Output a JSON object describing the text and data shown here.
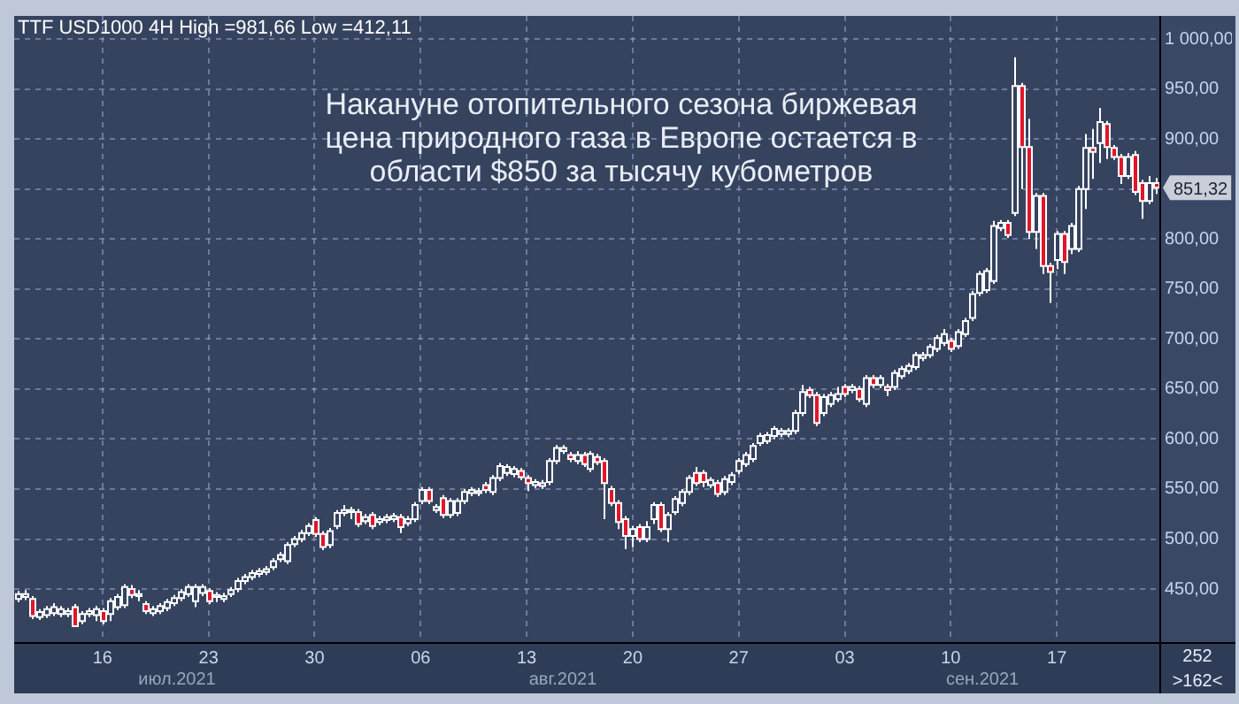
{
  "chart_data": {
    "type": "candlestick",
    "title": "Накануне отопительного сезона биржевая цена природного газа в Европе остается в области $850 за тысячу кубометров",
    "subtitle": "TTF USD1000 4H High =981,66 Low =412,11",
    "categories": [
      null,
      null,
      null,
      null,
      null,
      null,
      null,
      null,
      null,
      null,
      null,
      null,
      "16",
      null,
      null,
      null,
      null,
      null,
      null,
      null,
      null,
      null,
      null,
      null,
      null,
      null,
      null,
      "23",
      null,
      null,
      null,
      null,
      null,
      null,
      null,
      null,
      null,
      null,
      null,
      null,
      null,
      null,
      "30",
      null,
      null,
      null,
      null,
      null,
      null,
      null,
      null,
      null,
      null,
      null,
      null,
      null,
      null,
      "06",
      null,
      null,
      null,
      null,
      null,
      null,
      null,
      null,
      null,
      null,
      null,
      null,
      null,
      null,
      "13",
      null,
      null,
      null,
      null,
      null,
      null,
      null,
      null,
      null,
      null,
      null,
      null,
      null,
      null,
      "20",
      null,
      null,
      null,
      null,
      null,
      null,
      null,
      null,
      null,
      null,
      null,
      null,
      null,
      null,
      "27",
      null,
      null,
      null,
      null,
      null,
      null,
      null,
      null,
      null,
      null,
      null,
      null,
      null,
      null,
      "03",
      null,
      null,
      null,
      null,
      null,
      null,
      null,
      null,
      null,
      null,
      null,
      null,
      null,
      null,
      "10",
      null,
      null,
      null,
      null,
      null,
      null,
      null,
      null,
      null,
      null,
      null,
      null,
      null,
      null,
      "17",
      null,
      null,
      null,
      null,
      null,
      null,
      null,
      null,
      null,
      null,
      null,
      null,
      null,
      null
    ],
    "ohlc": [
      [
        440,
        448,
        437,
        445
      ],
      [
        442,
        449,
        439,
        445
      ],
      [
        440,
        443,
        420,
        423
      ],
      [
        422,
        430,
        419,
        427
      ],
      [
        424,
        433,
        421,
        430
      ],
      [
        426,
        436,
        423,
        432
      ],
      [
        425,
        433,
        422,
        430
      ],
      [
        425,
        431,
        422,
        428
      ],
      [
        432,
        435,
        412.11,
        413
      ],
      [
        418,
        428,
        415,
        425
      ],
      [
        425,
        431,
        422,
        428
      ],
      [
        424,
        433,
        418,
        430
      ],
      [
        428,
        431,
        415,
        418
      ],
      [
        425,
        441,
        418,
        438
      ],
      [
        432,
        445,
        429,
        442
      ],
      [
        434,
        455,
        431,
        452
      ],
      [
        450,
        454,
        441,
        444
      ],
      [
        443,
        449,
        438,
        445
      ],
      [
        435,
        438,
        425,
        428
      ],
      [
        426,
        433,
        423,
        430
      ],
      [
        428,
        436,
        425,
        433
      ],
      [
        431,
        440,
        428,
        437
      ],
      [
        436,
        444,
        433,
        441
      ],
      [
        441,
        450,
        438,
        447
      ],
      [
        445,
        455,
        442,
        452
      ],
      [
        438,
        455,
        432,
        452
      ],
      [
        446,
        455,
        443,
        452
      ],
      [
        448,
        451,
        435,
        438
      ],
      [
        442,
        447,
        437,
        444
      ],
      [
        440,
        446,
        437,
        443
      ],
      [
        445,
        452,
        442,
        449
      ],
      [
        450,
        461,
        447,
        458
      ],
      [
        458,
        465,
        455,
        462
      ],
      [
        462,
        469,
        459,
        466
      ],
      [
        465,
        471,
        462,
        468
      ],
      [
        467,
        473,
        464,
        470
      ],
      [
        472,
        481,
        469,
        478
      ],
      [
        480,
        487,
        477,
        484
      ],
      [
        478,
        497,
        475,
        494
      ],
      [
        495,
        503,
        492,
        500
      ],
      [
        500,
        509,
        497,
        506
      ],
      [
        506,
        516,
        503,
        513
      ],
      [
        519,
        522,
        502,
        505
      ],
      [
        505,
        508,
        489,
        492
      ],
      [
        494,
        511,
        491,
        508
      ],
      [
        513,
        529,
        510,
        526
      ],
      [
        526,
        534,
        523,
        529
      ],
      [
        527,
        532,
        520,
        529
      ],
      [
        527,
        530,
        512,
        515
      ],
      [
        518,
        525,
        515,
        522
      ],
      [
        524,
        527,
        510,
        513
      ],
      [
        517,
        523,
        514,
        520
      ],
      [
        519,
        525,
        516,
        522
      ],
      [
        520,
        526,
        517,
        523
      ],
      [
        522,
        525,
        506,
        512
      ],
      [
        516,
        523,
        513,
        520
      ],
      [
        520,
        537,
        517,
        534
      ],
      [
        538,
        552,
        535,
        549
      ],
      [
        549,
        552,
        535,
        538
      ],
      [
        529,
        535,
        526,
        532
      ],
      [
        541,
        544,
        521,
        524
      ],
      [
        524,
        541,
        521,
        538
      ],
      [
        526,
        541,
        523,
        538
      ],
      [
        538,
        550,
        535,
        547
      ],
      [
        546,
        552,
        543,
        549
      ],
      [
        546,
        551,
        543,
        548
      ],
      [
        554,
        557,
        546,
        549
      ],
      [
        547,
        564,
        544,
        561
      ],
      [
        561,
        576,
        558,
        573
      ],
      [
        566,
        575,
        563,
        572
      ],
      [
        565,
        573,
        562,
        570
      ],
      [
        568,
        571,
        559,
        562
      ],
      [
        561,
        564,
        548,
        556
      ],
      [
        554,
        560,
        551,
        557
      ],
      [
        553,
        559,
        550,
        556
      ],
      [
        557,
        581,
        554,
        578
      ],
      [
        578,
        594,
        575,
        591
      ],
      [
        588,
        594,
        585,
        591
      ],
      [
        584,
        587,
        577,
        580
      ],
      [
        578,
        588,
        575,
        584
      ],
      [
        584,
        587,
        572,
        575
      ],
      [
        570,
        588,
        567,
        585
      ],
      [
        582,
        585,
        574,
        577
      ],
      [
        578,
        581,
        520,
        556
      ],
      [
        550,
        553,
        533,
        536
      ],
      [
        536,
        539,
        510,
        517
      ],
      [
        520,
        523,
        490,
        503
      ],
      [
        503,
        513,
        492,
        510
      ],
      [
        512,
        515,
        497,
        500
      ],
      [
        500,
        518,
        497,
        512
      ],
      [
        520,
        537,
        515,
        534
      ],
      [
        534,
        537,
        507,
        510
      ],
      [
        510,
        527,
        497,
        524
      ],
      [
        527,
        543,
        524,
        540
      ],
      [
        536,
        550,
        533,
        547
      ],
      [
        547,
        564,
        544,
        561
      ],
      [
        566,
        572,
        553,
        556
      ],
      [
        566,
        569,
        552,
        557
      ],
      [
        554,
        562,
        551,
        559
      ],
      [
        556,
        559,
        542,
        545
      ],
      [
        547,
        563,
        544,
        560
      ],
      [
        557,
        567,
        554,
        564
      ],
      [
        568,
        581,
        565,
        578
      ],
      [
        575,
        587,
        572,
        584
      ],
      [
        580,
        596,
        577,
        593
      ],
      [
        596,
        606,
        593,
        603
      ],
      [
        598,
        607,
        595,
        604
      ],
      [
        603,
        613,
        600,
        610
      ],
      [
        605,
        611,
        602,
        608
      ],
      [
        605,
        611,
        602,
        608
      ],
      [
        608,
        629,
        605,
        626
      ],
      [
        626,
        654,
        623,
        647
      ],
      [
        649,
        652,
        641,
        644
      ],
      [
        644,
        647,
        613,
        616
      ],
      [
        626,
        645,
        623,
        642
      ],
      [
        635,
        647,
        632,
        644
      ],
      [
        640,
        652,
        637,
        645
      ],
      [
        652,
        655,
        642,
        645
      ],
      [
        649,
        655,
        646,
        652
      ],
      [
        650,
        653,
        637,
        640
      ],
      [
        635,
        664,
        632,
        661
      ],
      [
        661,
        664,
        651,
        654
      ],
      [
        654,
        664,
        651,
        661
      ],
      [
        652,
        655,
        643,
        649
      ],
      [
        652,
        669,
        649,
        666
      ],
      [
        663,
        673,
        660,
        670
      ],
      [
        668,
        676,
        665,
        673
      ],
      [
        672,
        687,
        669,
        684
      ],
      [
        681,
        687,
        678,
        684
      ],
      [
        684,
        695,
        681,
        692
      ],
      [
        690,
        704,
        687,
        701
      ],
      [
        696,
        710,
        693,
        705
      ],
      [
        698,
        701,
        687,
        690
      ],
      [
        693,
        710,
        690,
        707
      ],
      [
        705,
        721,
        702,
        718
      ],
      [
        721,
        748,
        718,
        745
      ],
      [
        746,
        768,
        743,
        765
      ],
      [
        749,
        771,
        746,
        768
      ],
      [
        758,
        818,
        755,
        813
      ],
      [
        811,
        819,
        808,
        816
      ],
      [
        816,
        819,
        801,
        804
      ],
      [
        826,
        981.66,
        823,
        953
      ],
      [
        953,
        956,
        850,
        892
      ],
      [
        892,
        920,
        800,
        807
      ],
      [
        807,
        846,
        790,
        843
      ],
      [
        843,
        846,
        765,
        773
      ],
      [
        773,
        776,
        736,
        767
      ],
      [
        779,
        808,
        770,
        805
      ],
      [
        805,
        808,
        765,
        777
      ],
      [
        790,
        816,
        785,
        813
      ],
      [
        790,
        853,
        787,
        850
      ],
      [
        850,
        905,
        830,
        891
      ],
      [
        891,
        910,
        860,
        887
      ],
      [
        896,
        931,
        876,
        917
      ],
      [
        915,
        918,
        880,
        892
      ],
      [
        891,
        894,
        879,
        882
      ],
      [
        882,
        885,
        855,
        863
      ],
      [
        863,
        886,
        860,
        882
      ],
      [
        884,
        888,
        844,
        847
      ],
      [
        856,
        859,
        820,
        838
      ],
      [
        838,
        863,
        835,
        856
      ],
      [
        856,
        861,
        845,
        851.32
      ]
    ],
    "ylim": [
      397,
      1023
    ],
    "yticks": [
      {
        "value": 450,
        "label": "450,00"
      },
      {
        "value": 500,
        "label": "500,00"
      },
      {
        "value": 550,
        "label": "550,00"
      },
      {
        "value": 600,
        "label": "600,00"
      },
      {
        "value": 650,
        "label": "650,00"
      },
      {
        "value": 700,
        "label": "700,00"
      },
      {
        "value": 750,
        "label": "750,00"
      },
      {
        "value": 800,
        "label": "800,00"
      },
      {
        "value": 850,
        "label": null
      },
      {
        "value": 900,
        "label": "900,00"
      },
      {
        "value": 950,
        "label": "950,00"
      },
      {
        "value": 1000,
        "label": "1 000,00"
      }
    ],
    "grid": true,
    "annotations": [
      "июл.2021",
      "авг.2021",
      "сен.2021",
      "252",
      ">162<",
      "851,32"
    ]
  }
}
